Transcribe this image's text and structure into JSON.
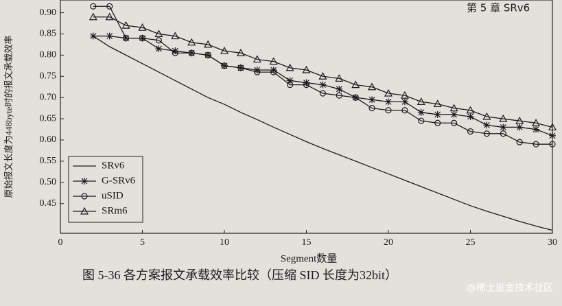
{
  "chart_data": {
    "type": "line",
    "page_header": "第 5 章  SRv6",
    "ylabel": "原始报文长度为448byte时的报文承载效率",
    "xlabel": "Segment数量",
    "caption": "图 5-36  各方案报文承载效率比较（压缩 SID 长度为32bit）",
    "watermark": "@稀土掘金技术社区",
    "x": [
      2,
      3,
      4,
      5,
      6,
      7,
      8,
      9,
      10,
      11,
      12,
      13,
      14,
      15,
      16,
      17,
      18,
      19,
      20,
      21,
      22,
      23,
      24,
      25,
      26,
      27,
      28,
      29,
      30
    ],
    "series": [
      {
        "name": "SRv6",
        "color": "#1a1a1a",
        "marker": "none",
        "values": [
          0.845,
          0.82,
          0.8,
          0.78,
          0.76,
          0.74,
          0.72,
          0.7,
          0.684,
          0.665,
          0.648,
          0.63,
          0.613,
          0.596,
          0.58,
          0.565,
          0.55,
          0.535,
          0.52,
          0.505,
          0.49,
          0.475,
          0.46,
          0.445,
          0.432,
          0.42,
          0.408,
          0.397,
          0.387
        ]
      },
      {
        "name": "G-SRv6",
        "color": "#1a1a1a",
        "marker": "star",
        "values": [
          0.845,
          0.845,
          0.84,
          0.84,
          0.815,
          0.81,
          0.805,
          0.8,
          0.775,
          0.77,
          0.765,
          0.765,
          0.74,
          0.735,
          0.73,
          0.72,
          0.7,
          0.695,
          0.69,
          0.69,
          0.665,
          0.66,
          0.66,
          0.655,
          0.635,
          0.63,
          0.63,
          0.625,
          0.61
        ]
      },
      {
        "name": "uSID",
        "color": "#1a1a1a",
        "marker": "circle",
        "values": [
          0.915,
          0.915,
          0.84,
          0.84,
          0.835,
          0.805,
          0.805,
          0.8,
          0.775,
          0.77,
          0.76,
          0.76,
          0.73,
          0.73,
          0.71,
          0.705,
          0.7,
          0.675,
          0.67,
          0.67,
          0.645,
          0.64,
          0.64,
          0.62,
          0.615,
          0.615,
          0.595,
          0.59,
          0.59
        ]
      },
      {
        "name": "SRm6",
        "color": "#1a1a1a",
        "marker": "triangle",
        "values": [
          0.89,
          0.89,
          0.87,
          0.865,
          0.85,
          0.845,
          0.83,
          0.825,
          0.81,
          0.805,
          0.79,
          0.785,
          0.77,
          0.765,
          0.75,
          0.745,
          0.73,
          0.725,
          0.71,
          0.705,
          0.69,
          0.685,
          0.675,
          0.67,
          0.655,
          0.65,
          0.645,
          0.64,
          0.63
        ]
      }
    ],
    "xlim": [
      0,
      30
    ],
    "xticks": [
      0,
      5,
      10,
      15,
      20,
      25,
      30
    ],
    "ylim": [
      0.38,
      0.93
    ],
    "yticks": [
      0.45,
      {
        "value": 0.5,
        "label": "0.50"
      },
      0.55,
      {
        "value": 0.6,
        "label": "0.60"
      },
      0.65,
      {
        "value": 0.7,
        "label": "0.70"
      },
      0.75,
      {
        "value": 0.8,
        "label": "0.80"
      },
      0.85,
      {
        "value": 0.9,
        "label": "0.90"
      }
    ],
    "legend": "lower left"
  }
}
